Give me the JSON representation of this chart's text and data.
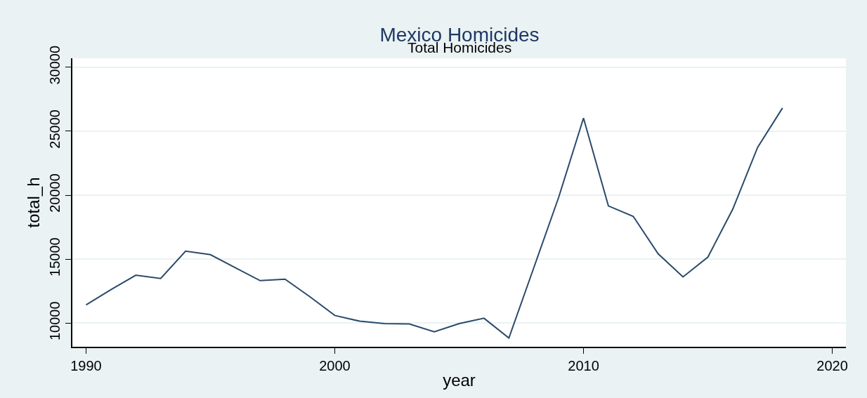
{
  "chart_data": {
    "type": "line",
    "title": "Mexico Homicides",
    "subtitle": "Total Homicides",
    "xlabel": "year",
    "ylabel": "total_h",
    "x": [
      1990,
      1991,
      1992,
      1993,
      1994,
      1995,
      1996,
      1997,
      1998,
      1999,
      2000,
      2001,
      2002,
      2003,
      2004,
      2005,
      2006,
      2007,
      2008,
      2009,
      2010,
      2011,
      2012,
      2013,
      2014,
      2015,
      2016,
      2017,
      2018
    ],
    "series": [
      {
        "color": "#2b4a6b",
        "values": [
          11420,
          12610,
          13740,
          13490,
          15620,
          15350,
          14330,
          13320,
          13430,
          12060,
          10600,
          10150,
          9960,
          9930,
          9320,
          9960,
          10380,
          8830,
          14320,
          19820,
          26020,
          19160,
          18340,
          15420,
          13610,
          15160,
          18900,
          23740,
          26810
        ]
      }
    ],
    "xlim": [
      1989.45,
      2020.55
    ],
    "xticks": [
      1990,
      2000,
      2010,
      2020
    ],
    "ylim": [
      8150,
      30700
    ],
    "yticks": [
      10000,
      15000,
      20000,
      25000,
      30000
    ],
    "grid": "y",
    "legend": false,
    "marker": "none",
    "line_style": "solid"
  }
}
